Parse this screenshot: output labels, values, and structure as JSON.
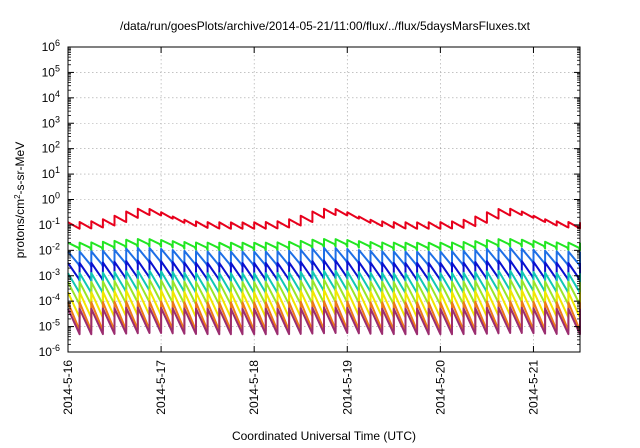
{
  "chart_data": {
    "type": "line",
    "title": "/data/run/goesPlots/archive/2014-05-21/11:00/flux/../flux/5daysMarsFluxes.txt",
    "xlabel": "Coordinated Universal Time (UTC)",
    "ylabel": "protons/cm2-s-sr-MeV",
    "ylabel_parts": {
      "pre": "protons/cm",
      "sup": "2",
      "post": "-s-sr-MeV"
    },
    "y_scale": "log",
    "ylim": [
      1e-06,
      1000000.0
    ],
    "y_ticks": [
      {
        "base": "10",
        "exp": "-6"
      },
      {
        "base": "10",
        "exp": "-5"
      },
      {
        "base": "10",
        "exp": "-4"
      },
      {
        "base": "10",
        "exp": "-3"
      },
      {
        "base": "10",
        "exp": "-2"
      },
      {
        "base": "10",
        "exp": "-1"
      },
      {
        "base": "10",
        "exp": "0"
      },
      {
        "base": "10",
        "exp": "1"
      },
      {
        "base": "10",
        "exp": "2"
      },
      {
        "base": "10",
        "exp": "3"
      },
      {
        "base": "10",
        "exp": "4"
      },
      {
        "base": "10",
        "exp": "5"
      },
      {
        "base": "10",
        "exp": "6"
      }
    ],
    "x_ticks": [
      "2014-5-16",
      "2014-5-17",
      "2014-5-18",
      "2014-5-19",
      "2014-5-20",
      "2014-5-21"
    ],
    "xlim": [
      "2014-05-16T00:00",
      "2014-05-21T12:00"
    ],
    "grid": true,
    "series": [
      {
        "color": "#e8001c",
        "base": -0.95,
        "amp": 0.55,
        "tooth": 0.25
      },
      {
        "color": "#22e622",
        "base": -1.75,
        "amp": 0.15,
        "tooth": 0.3
      },
      {
        "color": "#1e6fe6",
        "base": -2.1,
        "amp": 0.15,
        "tooth": 0.6
      },
      {
        "color": "#0a10d0",
        "base": -2.55,
        "amp": 0.1,
        "tooth": 0.7
      },
      {
        "color": "#10c8b4",
        "base": -2.95,
        "amp": 0.1,
        "tooth": 0.8
      },
      {
        "color": "#9ae628",
        "base": -3.3,
        "amp": 0.1,
        "tooth": 0.9
      },
      {
        "color": "#f0e800",
        "base": -3.7,
        "amp": 0.1,
        "tooth": 1.0
      },
      {
        "color": "#ee7a16",
        "base": -4.1,
        "amp": 0.05,
        "tooth": 1.1
      },
      {
        "color": "#9b2d70",
        "base": -4.35,
        "amp": 0.05,
        "tooth": 1.0
      }
    ],
    "red_bumps_day": [
      0.8,
      2.8,
      4.7
    ]
  }
}
